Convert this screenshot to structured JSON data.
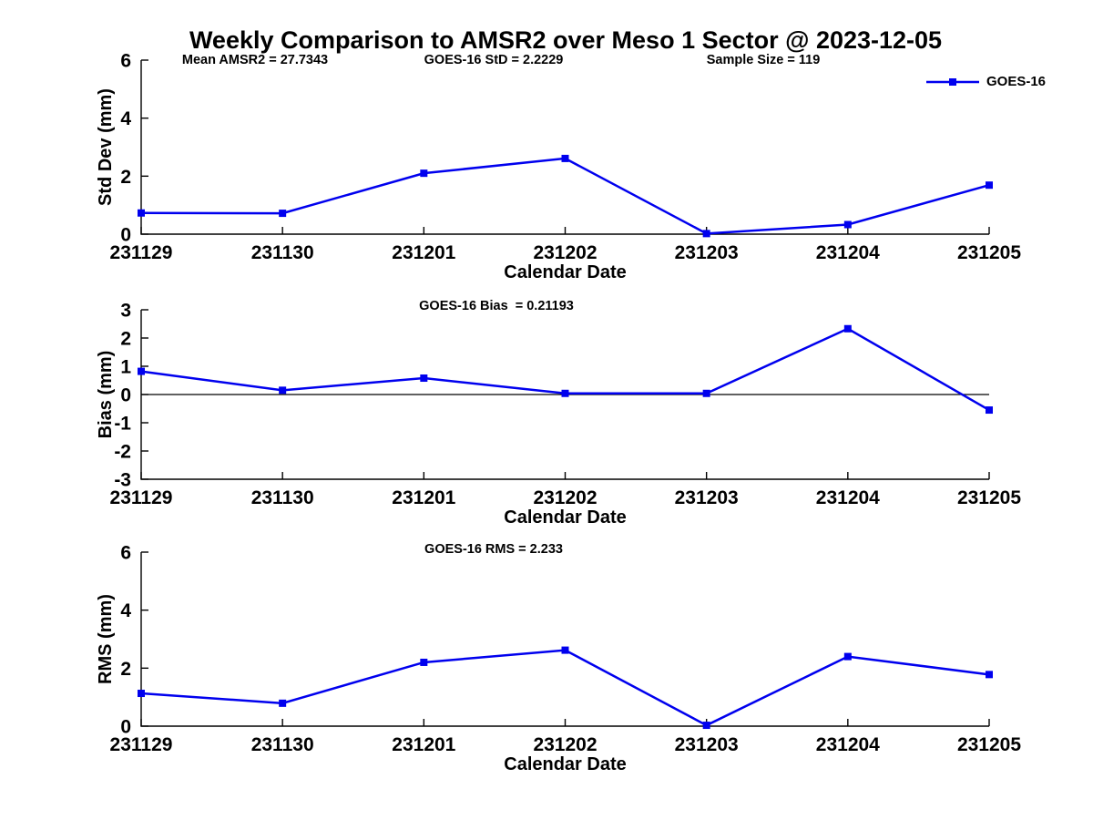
{
  "figure": {
    "title": "Weekly Comparison to AMSR2 over Meso 1 Sector @ 2023-12-05",
    "annotations": [
      "Mean AMSR2 = 27.7343",
      "GOES-16 StD = 2.2229",
      "Sample Size = 119"
    ],
    "legend": {
      "label": "GOES-16",
      "color": "#0000ee",
      "marker": "square"
    },
    "colors": {
      "line": "#0000ee",
      "axis": "#000000",
      "background": "#ffffff"
    }
  },
  "chart_data": [
    {
      "name": "std-dev",
      "type": "line",
      "subtitle": "",
      "xlabel": "Calendar Date",
      "ylabel": "Std Dev (mm)",
      "categories": [
        "231129",
        "231130",
        "231201",
        "231202",
        "231203",
        "231204",
        "231205"
      ],
      "ylim": [
        0,
        6
      ],
      "yticks": [
        0,
        2,
        4,
        6
      ],
      "zero_line": false,
      "grid": false,
      "legend_position": "top-right",
      "series": [
        {
          "name": "GOES-16",
          "color": "#0000ee",
          "marker": "square",
          "values": [
            0.73,
            0.72,
            2.1,
            2.61,
            0.02,
            0.33,
            1.69
          ]
        }
      ]
    },
    {
      "name": "bias",
      "type": "line",
      "subtitle": "GOES-16 Bias  = 0.21193",
      "xlabel": "Calendar Date",
      "ylabel": "Bias (mm)",
      "categories": [
        "231129",
        "231130",
        "231201",
        "231202",
        "231203",
        "231204",
        "231205"
      ],
      "ylim": [
        -3,
        3
      ],
      "yticks": [
        3,
        2,
        1,
        0,
        -1,
        -2,
        -3
      ],
      "zero_line": true,
      "grid": false,
      "series": [
        {
          "name": "GOES-16",
          "color": "#0000ee",
          "marker": "square",
          "values": [
            0.82,
            0.15,
            0.58,
            0.04,
            0.04,
            2.33,
            -0.55
          ]
        }
      ]
    },
    {
      "name": "rms",
      "type": "line",
      "subtitle": "GOES-16 RMS = 2.233",
      "xlabel": "Calendar Date",
      "ylabel": "RMS (mm)",
      "categories": [
        "231129",
        "231130",
        "231201",
        "231202",
        "231203",
        "231204",
        "231205"
      ],
      "ylim": [
        0,
        6
      ],
      "yticks": [
        0,
        2,
        4,
        6
      ],
      "zero_line": false,
      "grid": false,
      "series": [
        {
          "name": "GOES-16",
          "color": "#0000ee",
          "marker": "square",
          "values": [
            1.13,
            0.79,
            2.2,
            2.62,
            0.03,
            2.4,
            1.78
          ]
        }
      ]
    }
  ]
}
